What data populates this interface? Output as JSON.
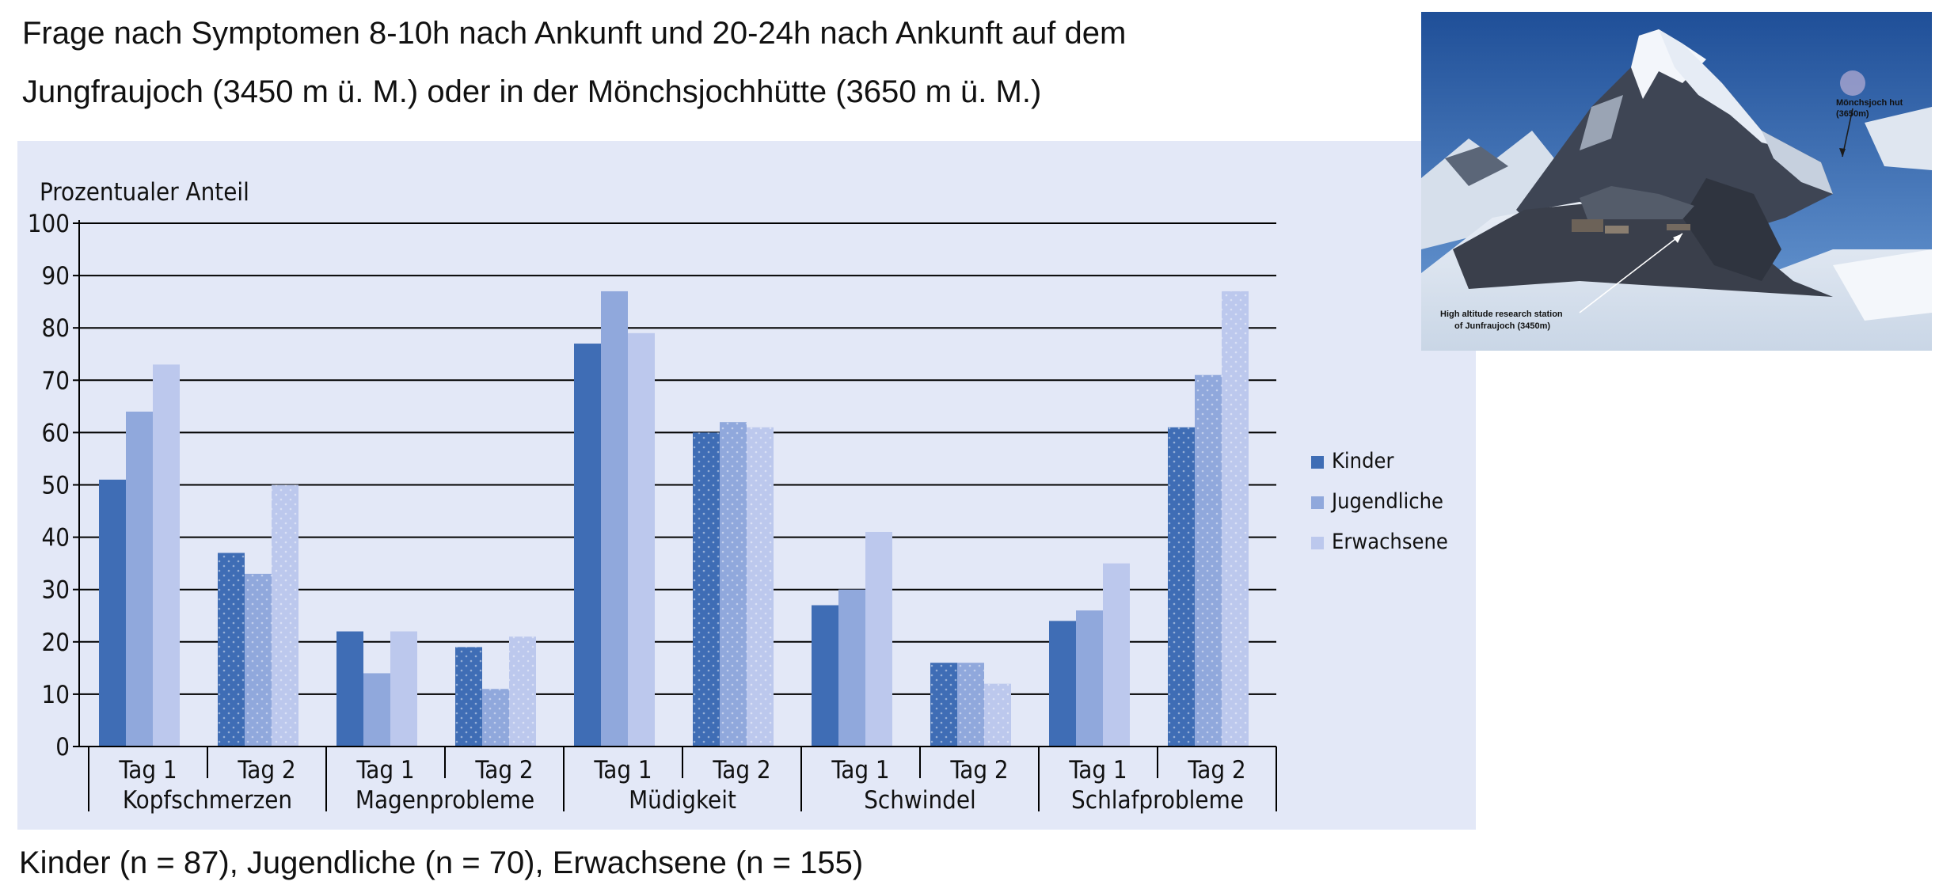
{
  "heading": {
    "line1": "Frage nach Symptomen 8-10h nach Ankunft und 20-24h nach Ankunft auf dem",
    "line2": "Jungfraujoch (3450 m ü. M.) oder in der Mönchsjochhütte (3650 m ü. M.)"
  },
  "footer": {
    "text": "Kinder (n = 87), Jugendliche (n = 70), Erwachsene (n = 155)"
  },
  "photo": {
    "label_hut_line1": "Mönchsjoch hut",
    "label_hut_line2": "(3650m)",
    "label_station_line1": "High altitude research station",
    "label_station_line2": "of Junfraujoch (3450m)"
  },
  "chart_data": {
    "type": "bar",
    "ylabel": "Prozentualer Anteil",
    "ylim": [
      0,
      100
    ],
    "yticks": [
      0,
      10,
      20,
      30,
      40,
      50,
      60,
      70,
      80,
      90,
      100
    ],
    "grid": true,
    "legend_position": "right",
    "groups": [
      "Kopfschmerzen",
      "Magenprobleme",
      "Müdigkeit",
      "Schwindel",
      "Schlafprobleme"
    ],
    "categories": [
      "Tag 1",
      "Tag 2",
      "Tag 1",
      "Tag 2",
      "Tag 1",
      "Tag 2",
      "Tag 1",
      "Tag 2",
      "Tag 1",
      "Tag 2"
    ],
    "series": [
      {
        "name": "Kinder",
        "color": "#3f6db5",
        "values": [
          51,
          37,
          22,
          19,
          77,
          60,
          27,
          16,
          24,
          61
        ]
      },
      {
        "name": "Jugendliche",
        "color": "#90a8dc",
        "values": [
          64,
          33,
          14,
          11,
          87,
          62,
          30,
          16,
          26,
          71
        ]
      },
      {
        "name": "Erwachsene",
        "color": "#bcc8ed",
        "values": [
          73,
          50,
          22,
          21,
          79,
          61,
          41,
          12,
          35,
          87
        ]
      }
    ],
    "day2_pattern": "dotted"
  }
}
